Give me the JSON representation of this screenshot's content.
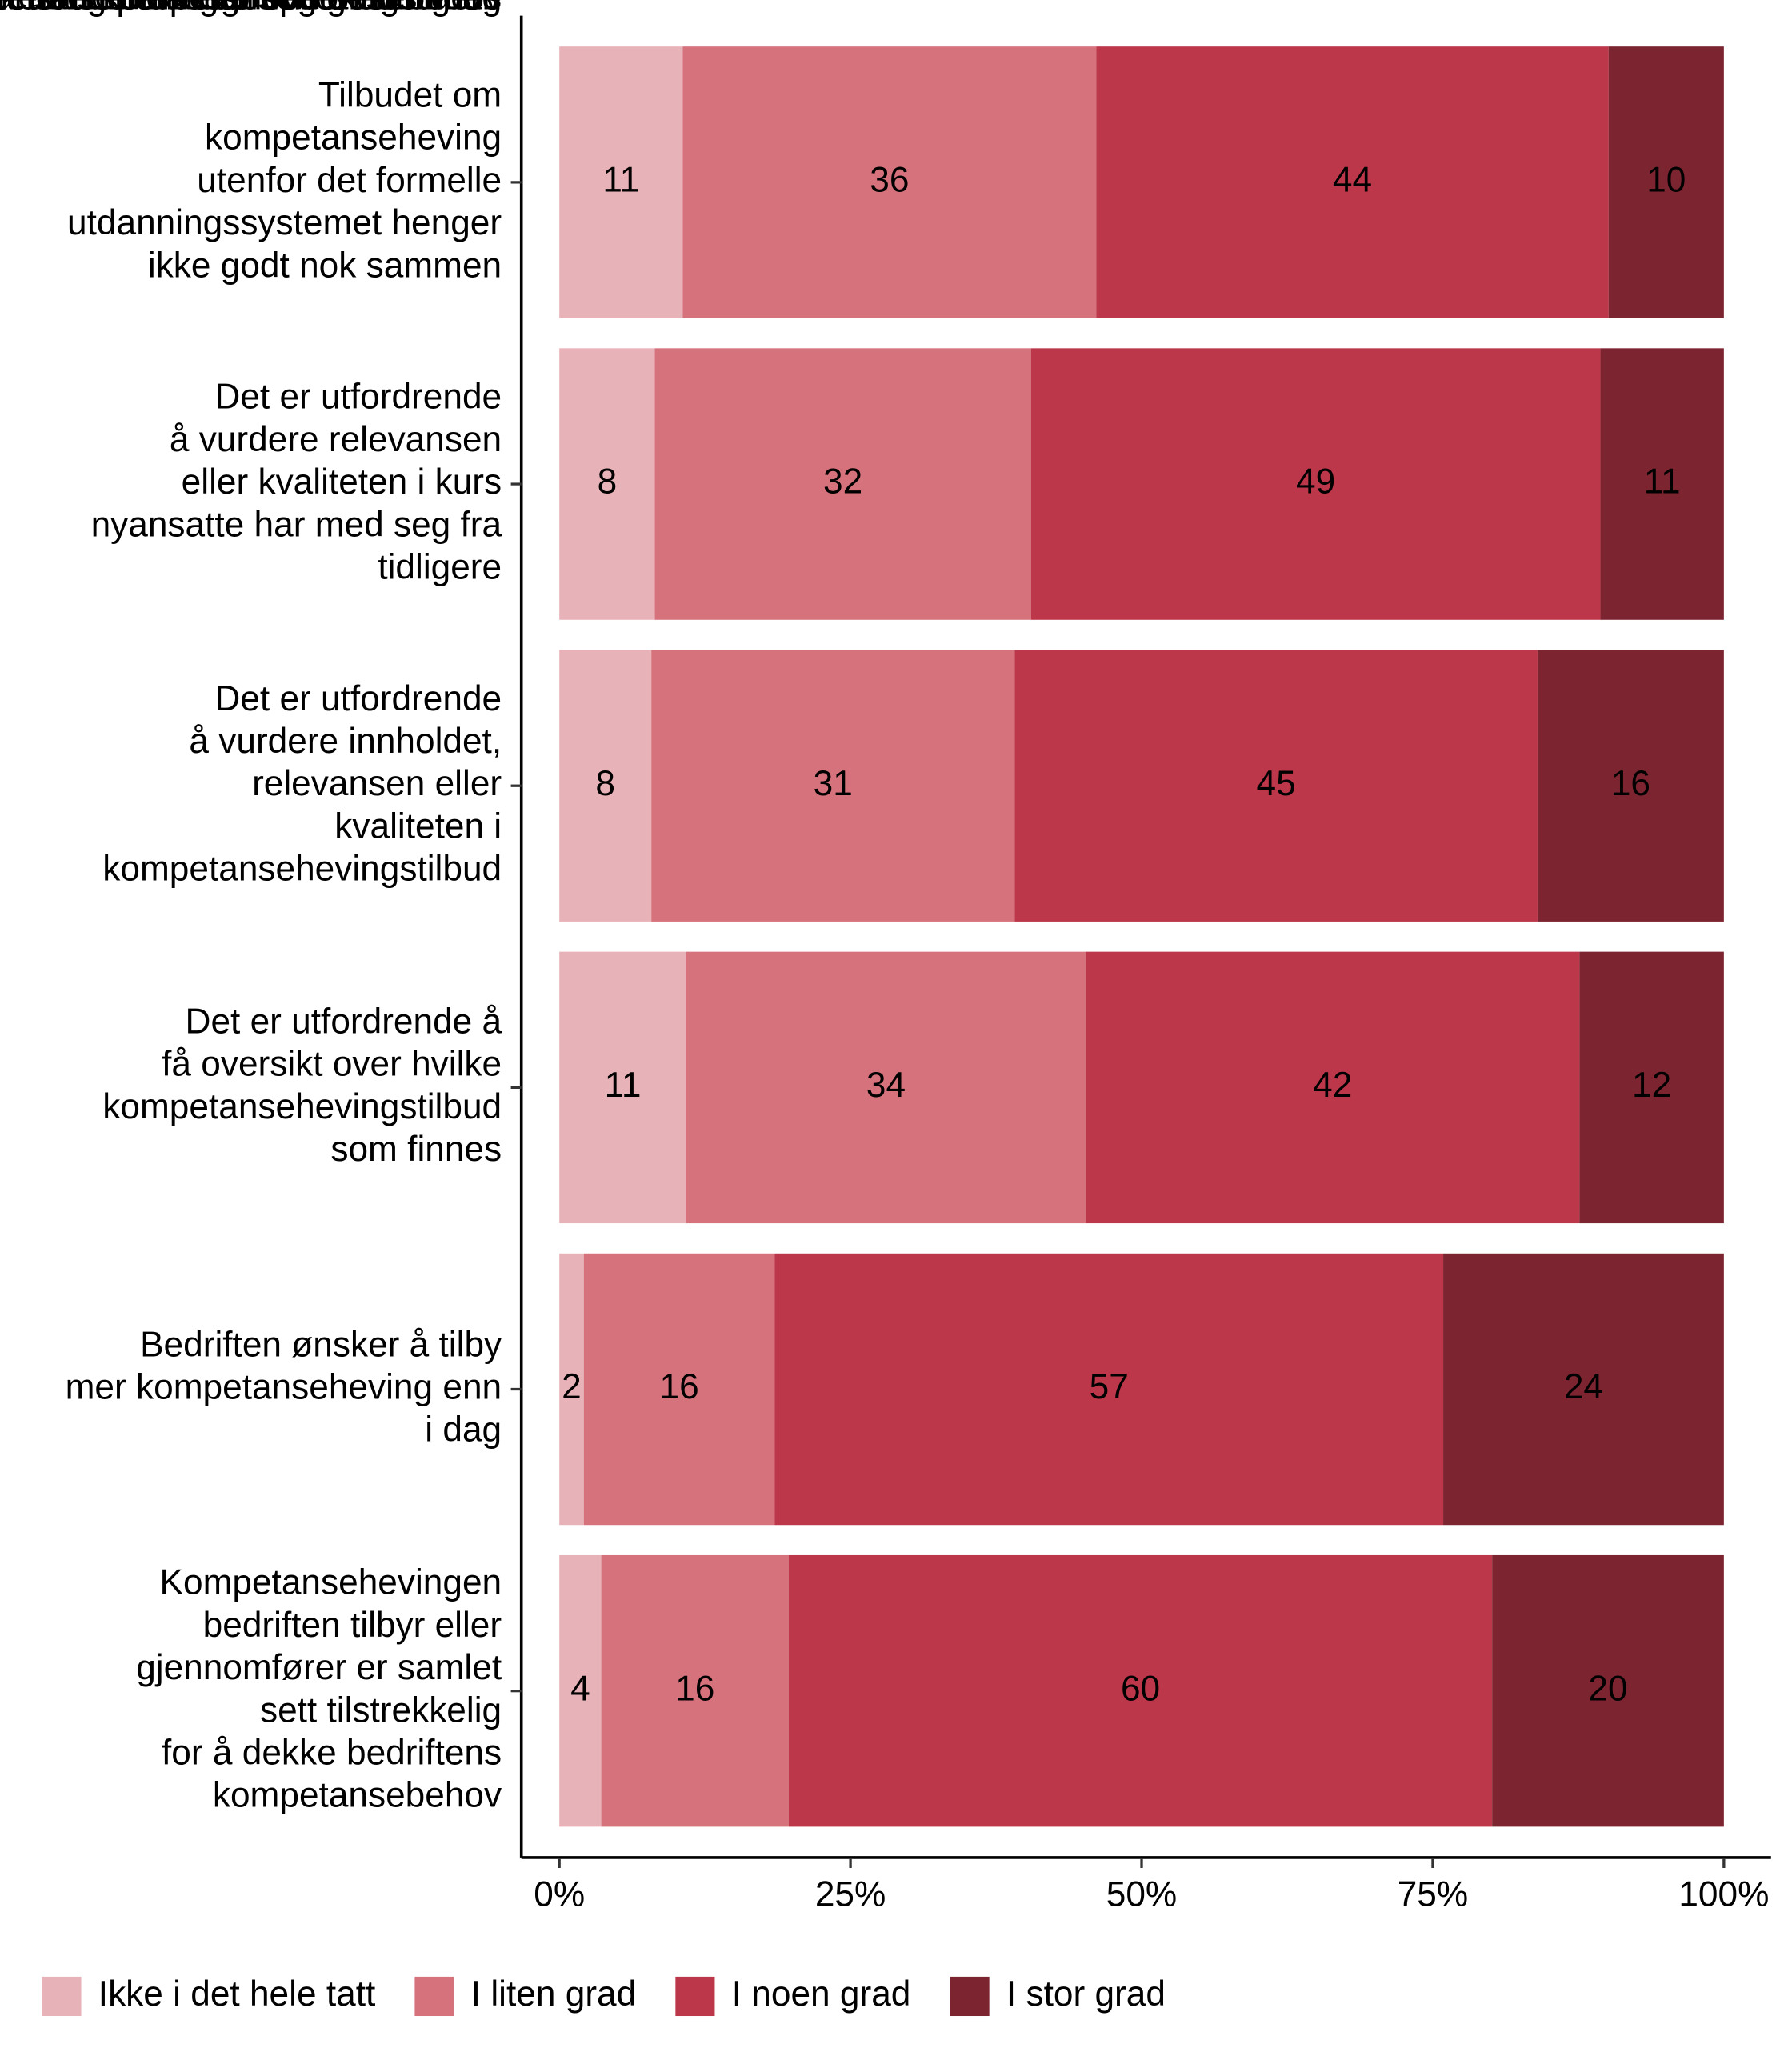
{
  "chart_data": {
    "type": "stacked-barh",
    "categories": [
      "Tilbudet om\nkompetanseheving\nutenfor det formelle\nutdanningssystemet henger\nikke godt nok sammen",
      "Det er utfordrende\nå vurdere relevansen\neller kvaliteten i kurs\nnyansatte har med seg fra\ntidligere",
      "Det er utfordrende\nå vurdere innholdet,\nrelevansen eller\nkvaliteten i\nkompetansehevingstilbud",
      "Det er utfordrende å\nfå oversikt over hvilke\nkompetansehevingstilbud\nsom finnes",
      "Bedriften ønsker å tilby\nmer kompetanseheving enn\ni dag",
      "Kompetansehevingen\nbedriften tilbyr eller\ngjennomfører er samlet\nsett tilstrekkelig\nfor å dekke bedriftens\nkompetansebehov"
    ],
    "series": [
      {
        "name": "Ikke i det hele tatt",
        "color": "#e8b3b8",
        "label_color": "#000000",
        "values": [
          10.6,
          8.2,
          7.9,
          10.9,
          2.1,
          3.6
        ],
        "value_labels": [
          "11",
          "8",
          "8",
          "11",
          "2",
          "4"
        ]
      },
      {
        "name": "I liten grad",
        "color": "#d6727c",
        "label_color": "#000000",
        "values": [
          35.5,
          32.3,
          31.2,
          34.3,
          16.4,
          16.1
        ],
        "value_labels": [
          "36",
          "32",
          "31",
          "34",
          "16",
          "16"
        ]
      },
      {
        "name": "I noen grad",
        "color": "#bc374a",
        "label_color": "#ffffff",
        "values": [
          44.0,
          48.9,
          44.9,
          42.4,
          57.4,
          60.4
        ],
        "value_labels": [
          "44",
          "49",
          "45",
          "42",
          "57",
          "60"
        ]
      },
      {
        "name": "I stor grad",
        "color": "#7c2430",
        "label_color": "#ffffff",
        "values": [
          9.9,
          10.6,
          16.0,
          12.4,
          24.1,
          19.9
        ],
        "value_labels": [
          "10",
          "11",
          "16",
          "12",
          "24",
          "20"
        ]
      }
    ],
    "xlim": [
      0,
      100
    ],
    "xticks": [
      {
        "value": 0,
        "label": "0%"
      },
      {
        "value": 25,
        "label": "25%"
      },
      {
        "value": 50,
        "label": "50%"
      },
      {
        "value": 75,
        "label": "75%"
      },
      {
        "value": 100,
        "label": "100%"
      }
    ],
    "legend": "bottom"
  }
}
